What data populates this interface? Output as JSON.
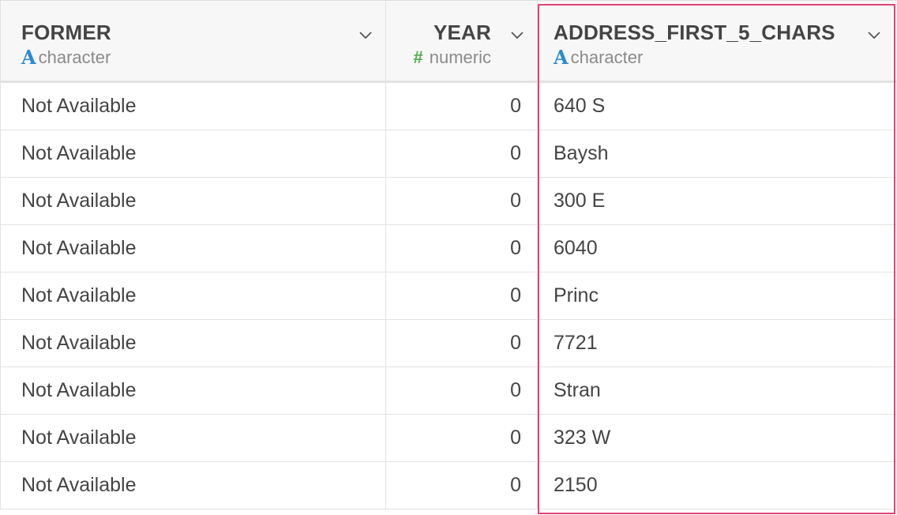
{
  "columns": [
    {
      "name": "FORMER",
      "type_label": "character",
      "type_icon": "character-type-icon"
    },
    {
      "name": "YEAR",
      "type_label": "numeric",
      "type_icon": "numeric-type-icon"
    },
    {
      "name": "ADDRESS_FIRST_5_CHARS",
      "type_label": "character",
      "type_icon": "character-type-icon"
    }
  ],
  "type_glyphs": {
    "character": "A",
    "numeric": "#"
  },
  "selected_column": "ADDRESS_FIRST_5_CHARS",
  "colors": {
    "selection": "#e0427a",
    "character_icon": "#2a8ad4",
    "numeric_icon": "#4cae4c"
  },
  "rows": [
    {
      "former": "Not Available",
      "year": "0",
      "address": "640 S"
    },
    {
      "former": "Not Available",
      "year": "0",
      "address": "Baysh"
    },
    {
      "former": "Not Available",
      "year": "0",
      "address": "300 E"
    },
    {
      "former": "Not Available",
      "year": "0",
      "address": "6040"
    },
    {
      "former": "Not Available",
      "year": "0",
      "address": "Princ"
    },
    {
      "former": "Not Available",
      "year": "0",
      "address": "7721"
    },
    {
      "former": "Not Available",
      "year": "0",
      "address": "Stran"
    },
    {
      "former": "Not Available",
      "year": "0",
      "address": "323 W"
    },
    {
      "former": "Not Available",
      "year": "0",
      "address": "2150"
    }
  ]
}
